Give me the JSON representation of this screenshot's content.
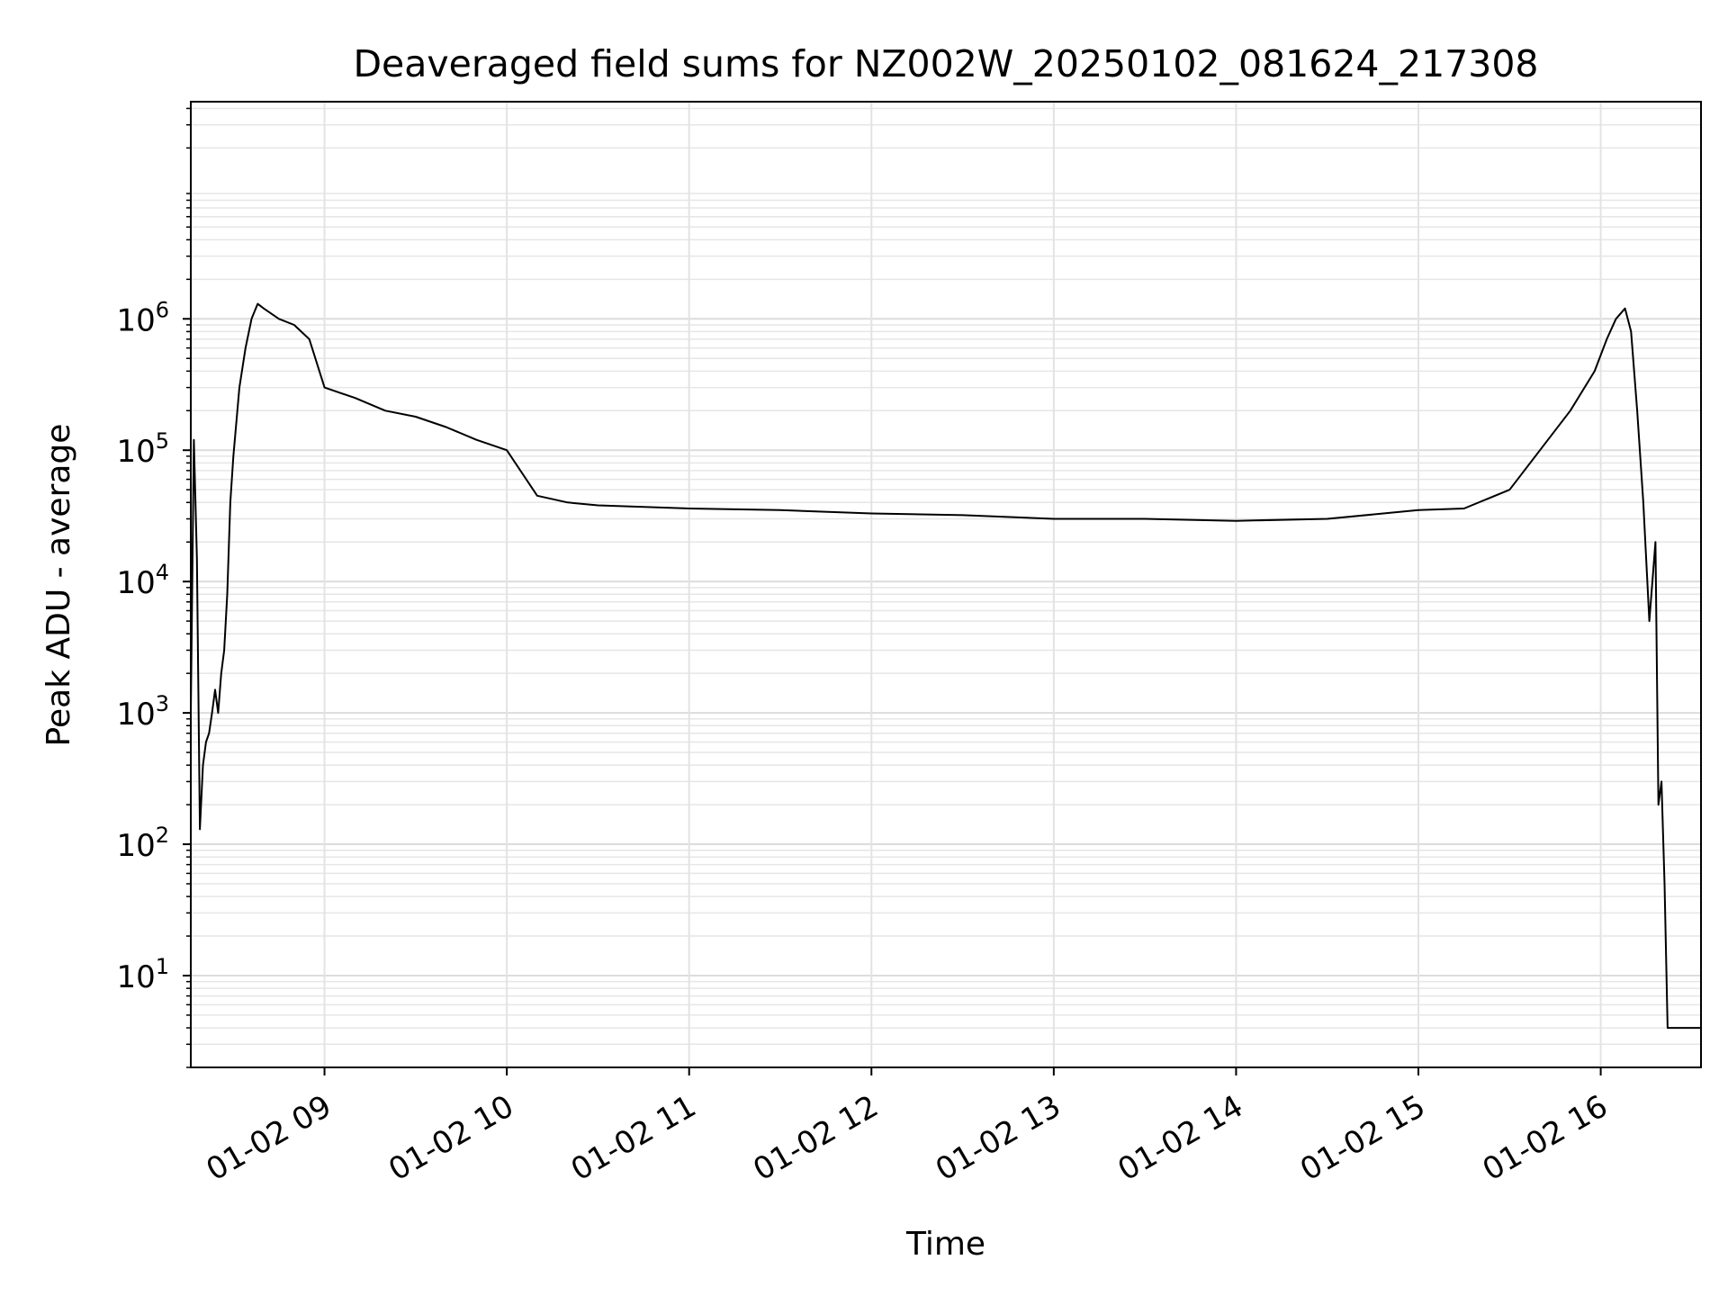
{
  "chart_data": {
    "type": "line",
    "title": "Deaveraged field sums for NZ002W_20250102_081624_217308",
    "xlabel": "Time",
    "ylabel": "Peak ADU - average",
    "yscale": "log",
    "ylim": [
      2,
      45000000
    ],
    "xlim": [
      "01-02 08:16",
      "01-02 16:33"
    ],
    "grid": true,
    "line_color": "#000000",
    "x_ticks": [
      {
        "value": "01-02 09:00",
        "label": "01-02 09"
      },
      {
        "value": "01-02 10:00",
        "label": "01-02 10"
      },
      {
        "value": "01-02 11:00",
        "label": "01-02 11"
      },
      {
        "value": "01-02 12:00",
        "label": "01-02 12"
      },
      {
        "value": "01-02 13:00",
        "label": "01-02 13"
      },
      {
        "value": "01-02 14:00",
        "label": "01-02 14"
      },
      {
        "value": "01-02 15:00",
        "label": "01-02 15"
      },
      {
        "value": "01-02 16:00",
        "label": "01-02 16"
      }
    ],
    "y_ticks": [
      {
        "value": 10,
        "base": "10",
        "exp": "1"
      },
      {
        "value": 100,
        "base": "10",
        "exp": "2"
      },
      {
        "value": 1000,
        "base": "10",
        "exp": "3"
      },
      {
        "value": 10000,
        "base": "10",
        "exp": "4"
      },
      {
        "value": 100000,
        "base": "10",
        "exp": "5"
      },
      {
        "value": 1000000,
        "base": "10",
        "exp": "6"
      }
    ],
    "series": [
      {
        "x": [
          "01-02 08:16",
          "01-02 08:17",
          "01-02 08:18",
          "01-02 08:19",
          "01-02 08:20",
          "01-02 08:21",
          "01-02 08:22",
          "01-02 08:23",
          "01-02 08:24",
          "01-02 08:25",
          "01-02 08:26",
          "01-02 08:27",
          "01-02 08:28",
          "01-02 08:29",
          "01-02 08:30",
          "01-02 08:32",
          "01-02 08:34",
          "01-02 08:36",
          "01-02 08:38",
          "01-02 08:40",
          "01-02 08:45",
          "01-02 08:50",
          "01-02 08:55",
          "01-02 09:00",
          "01-02 09:10",
          "01-02 09:20",
          "01-02 09:30",
          "01-02 09:40",
          "01-02 09:50",
          "01-02 10:00",
          "01-02 10:10",
          "01-02 10:20",
          "01-02 10:30",
          "01-02 11:00",
          "01-02 11:30",
          "01-02 12:00",
          "01-02 12:30",
          "01-02 13:00",
          "01-02 13:30",
          "01-02 14:00",
          "01-02 14:30",
          "01-02 15:00",
          "01-02 15:15",
          "01-02 15:30",
          "01-02 15:40",
          "01-02 15:50",
          "01-02 15:58",
          "01-02 16:02",
          "01-02 16:05",
          "01-02 16:08",
          "01-02 16:10",
          "01-02 16:12",
          "01-02 16:14",
          "01-02 16:16",
          "01-02 16:18",
          "01-02 16:19",
          "01-02 16:20",
          "01-02 16:21",
          "01-02 16:22",
          "01-02 16:23",
          "01-02 16:24",
          "01-02 16:33"
        ],
        "y": [
          1000,
          120000,
          15000,
          130,
          400,
          600,
          700,
          1000,
          1500,
          1000,
          2000,
          3000,
          8000,
          40000,
          90000,
          300000,
          600000,
          1000000,
          1300000,
          1200000,
          1000000,
          900000,
          700000,
          300000,
          250000,
          200000,
          180000,
          150000,
          120000,
          100000,
          45000,
          40000,
          38000,
          36000,
          35000,
          33000,
          32000,
          30000,
          30000,
          29000,
          30000,
          35000,
          36000,
          50000,
          100000,
          200000,
          400000,
          700000,
          1000000,
          1200000,
          800000,
          200000,
          40000,
          5000,
          20000,
          200,
          300,
          50,
          4,
          4,
          4,
          4
        ]
      }
    ]
  }
}
